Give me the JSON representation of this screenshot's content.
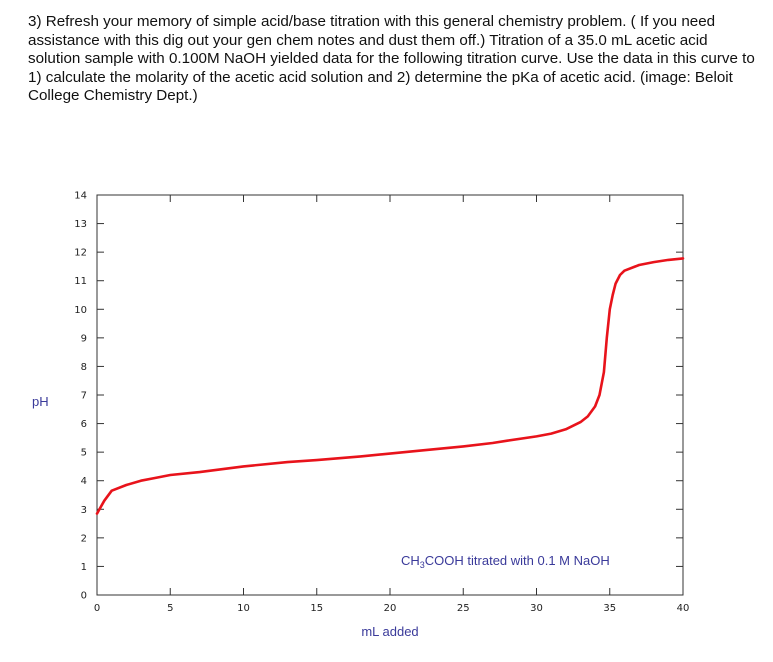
{
  "question": {
    "text": "3) Refresh your memory of simple acid/base titration with this general chemistry problem. ( If you need assistance with this dig out your gen chem notes and dust them off.) Titration of a 35.0 mL acetic acid solution sample with 0.100M NaOH yielded data for the following titration curve.   Use the data in this curve to 1) calculate the molarity of the acetic acid solution and 2) determine the pKa of acetic acid. (image: Beloit College Chemistry Dept.)"
  },
  "chart_data": {
    "type": "line",
    "xlabel": "mL added",
    "ylabel": "pH",
    "xlim": [
      0,
      40
    ],
    "ylim": [
      0,
      14
    ],
    "xticks": [
      0,
      5,
      10,
      15,
      20,
      25,
      30,
      35,
      40
    ],
    "yticks": [
      0,
      1,
      2,
      3,
      4,
      5,
      6,
      7,
      8,
      9,
      10,
      11,
      12,
      13,
      14
    ],
    "annotation": {
      "prefix": "CH",
      "sub1": "3",
      "suffix": "COOH titrated with 0.1 M NaOH"
    },
    "grid": false,
    "line_color": "#e8131b",
    "label_color": "#3a3a9a",
    "series": [
      {
        "x": [
          0,
          0.5,
          1,
          2,
          3,
          4,
          5,
          7,
          10,
          13,
          15,
          18,
          20,
          22,
          25,
          27,
          28,
          30,
          31,
          32,
          33,
          33.5,
          34,
          34.3,
          34.6,
          34.8,
          35,
          35.2,
          35.4,
          35.7,
          36,
          37,
          38,
          39,
          40
        ],
        "y": [
          2.85,
          3.3,
          3.65,
          3.85,
          4.0,
          4.1,
          4.2,
          4.3,
          4.5,
          4.65,
          4.72,
          4.85,
          4.95,
          5.05,
          5.2,
          5.32,
          5.4,
          5.55,
          5.65,
          5.8,
          6.05,
          6.25,
          6.6,
          7.0,
          7.8,
          9.0,
          10.0,
          10.5,
          10.9,
          11.2,
          11.35,
          11.55,
          11.65,
          11.73,
          11.78
        ]
      }
    ]
  }
}
